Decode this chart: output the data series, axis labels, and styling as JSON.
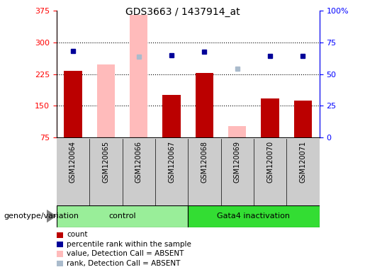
{
  "title": "GDS3663 / 1437914_at",
  "samples": [
    "GSM120064",
    "GSM120065",
    "GSM120066",
    "GSM120067",
    "GSM120068",
    "GSM120069",
    "GSM120070",
    "GSM120071"
  ],
  "count_values": [
    232,
    null,
    null,
    175,
    228,
    null,
    168,
    162
  ],
  "count_absent_values": [
    null,
    248,
    365,
    null,
    null,
    102,
    null,
    null
  ],
  "absent_rank_values": [
    null,
    null,
    267,
    null,
    null,
    null,
    null,
    null
  ],
  "rank_values": [
    null,
    null,
    null,
    null,
    null,
    238,
    null,
    null
  ],
  "percentile_rank": [
    280,
    null,
    null,
    270,
    278,
    null,
    268,
    268
  ],
  "ylim_left": [
    75,
    375
  ],
  "ylim_right": [
    0,
    100
  ],
  "yticks_left": [
    75,
    150,
    225,
    300,
    375
  ],
  "yticks_right": [
    0,
    25,
    50,
    75,
    100
  ],
  "ytick_labels_right": [
    "0",
    "25",
    "50",
    "75",
    "100%"
  ],
  "count_color": "#bb0000",
  "absent_value_color": "#ffbbbb",
  "percentile_color": "#000099",
  "absent_rank_color": "#aabbcc",
  "bg_color": "#cccccc",
  "control_color": "#99ee99",
  "gata4_color": "#33dd33",
  "legend_items": [
    {
      "color": "#bb0000",
      "label": "count"
    },
    {
      "color": "#000099",
      "label": "percentile rank within the sample"
    },
    {
      "color": "#ffbbbb",
      "label": "value, Detection Call = ABSENT"
    },
    {
      "color": "#aabbcc",
      "label": "rank, Detection Call = ABSENT"
    }
  ]
}
